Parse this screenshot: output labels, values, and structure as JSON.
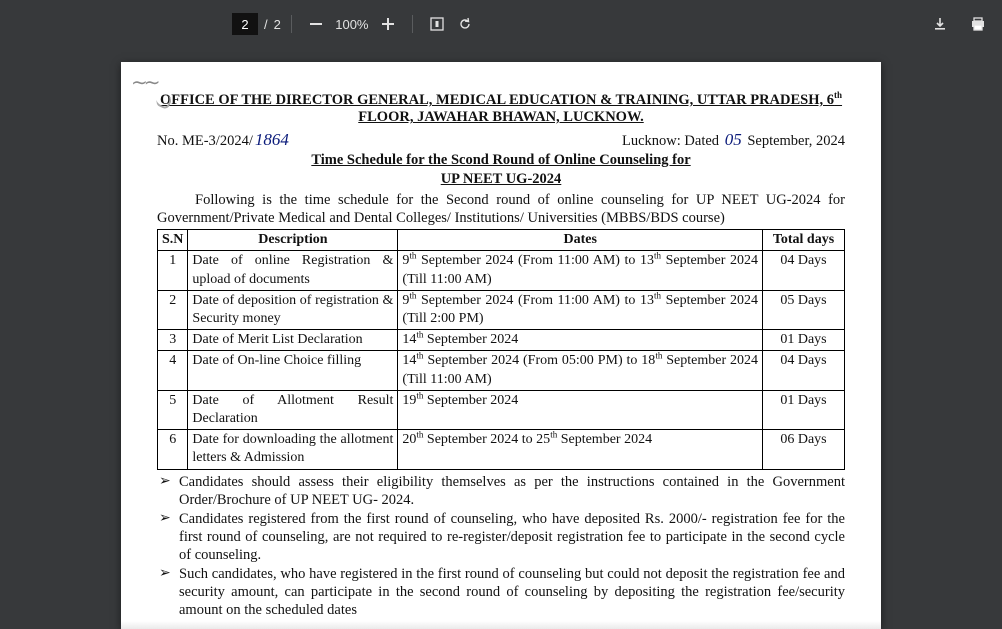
{
  "toolbar": {
    "page_current": "2",
    "page_total": "2",
    "page_sep": "/",
    "zoom_level": "100%"
  },
  "doc": {
    "office_line1": "OFFICE OF THE DIRECTOR GENERAL, MEDICAL EDUCATION & TRAINING, UTTAR PRADESH, 6",
    "office_sup": "th",
    "office_line2": "FLOOR, JAWAHAR BHAWAN, LUCKNOW.",
    "ref_prefix": "No. ME-3/2024/",
    "ref_handwritten": "1864",
    "date_prefix": "Lucknow: Dated ",
    "date_handwritten": "05",
    "date_suffix": " September, 2024",
    "title1": "Time Schedule for the Scond Round of Online Counseling for",
    "title2": "UP NEET UG-2024",
    "intro": "Following is the time schedule for the Second round of online counseling for UP NEET UG-2024 for Government/Private Medical and Dental Colleges/ Institutions/ Universities (MBBS/BDS course)",
    "table": {
      "headers": {
        "sn": "S.N",
        "desc": "Description",
        "dates": "Dates",
        "days": "Total days"
      },
      "rows": [
        {
          "sn": "1",
          "desc": "Date of online Registration & upload of documents",
          "dates": "9<sup>th</sup> September 2024 (From 11:00 AM) to 13<sup>th</sup> September 2024 (Till  11:00 AM)",
          "days": "04 Days"
        },
        {
          "sn": "2",
          "desc": "Date of deposition of registration & Security money",
          "dates": "9<sup>th</sup> September 2024 (From 11:00 AM) to 13<sup>th</sup> September 2024 (Till  2:00 PM)",
          "days": "05 Days"
        },
        {
          "sn": "3",
          "desc": "Date of Merit List Declaration",
          "dates": "14<sup>th</sup>  September 2024",
          "days": "01 Days"
        },
        {
          "sn": "4",
          "desc": "Date of On-line Choice filling",
          "dates": "14<sup>th</sup> September 2024 (From 05:00 PM) to 18<sup>th</sup> September 2024  (Till 11:00 AM)",
          "days": "04 Days"
        },
        {
          "sn": "5",
          "desc": "Date of Allotment Result Declaration",
          "dates": "19<sup>th</sup> September 2024",
          "days": "01 Days"
        },
        {
          "sn": "6",
          "desc": "Date for downloading the allotment letters & Admission",
          "dates": "20<sup>th</sup> September 2024 to 25<sup>th</sup> September 2024",
          "days": "06 Days"
        }
      ]
    },
    "bullets": [
      "Candidates should assess their eligibility themselves as per the instructions contained in the Government Order/Brochure of UP NEET UG- 2024.",
      "Candidates registered from the first round of counseling, who have deposited Rs. 2000/- registration fee for the first round of counseling, are not required to re-register/deposit registration fee to participate in the second cycle of counseling.",
      "Such candidates, who have registered in the first round of counseling but could not deposit the registration fee and security amount, can participate in the second round of counseling by depositing the registration fee/security amount on the scheduled dates"
    ]
  }
}
